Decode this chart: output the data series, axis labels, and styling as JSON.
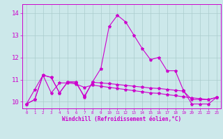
{
  "xlabel": "Windchill (Refroidissement éolien,°C)",
  "background_color": "#cce8ea",
  "grid_color": "#aacccc",
  "line_color": "#cc00cc",
  "hours": [
    0,
    1,
    2,
    3,
    4,
    5,
    6,
    7,
    8,
    9,
    10,
    11,
    12,
    13,
    14,
    15,
    16,
    17,
    18,
    19,
    20,
    21,
    22,
    23
  ],
  "yticks": [
    10,
    11,
    12,
    13,
    14
  ],
  "ylim": [
    9.7,
    14.4
  ],
  "xlim": [
    -0.5,
    23.5
  ],
  "line1": [
    9.9,
    10.1,
    11.2,
    11.1,
    10.4,
    10.9,
    10.9,
    10.2,
    10.9,
    11.5,
    13.4,
    13.9,
    13.6,
    13.0,
    12.4,
    11.9,
    12.0,
    11.4,
    11.4,
    10.5,
    9.9,
    9.9,
    9.9,
    10.2
  ],
  "line2": [
    9.9,
    10.55,
    11.2,
    10.4,
    10.85,
    10.85,
    10.8,
    10.65,
    10.75,
    10.7,
    10.65,
    10.6,
    10.55,
    10.5,
    10.45,
    10.4,
    10.38,
    10.32,
    10.28,
    10.22,
    10.18,
    10.14,
    10.1,
    10.2
  ],
  "line3": [
    9.9,
    10.1,
    11.2,
    11.1,
    10.4,
    10.9,
    10.85,
    10.25,
    10.88,
    10.85,
    10.82,
    10.78,
    10.74,
    10.7,
    10.66,
    10.62,
    10.6,
    10.56,
    10.52,
    10.48,
    10.1,
    10.1,
    10.1,
    10.2
  ]
}
